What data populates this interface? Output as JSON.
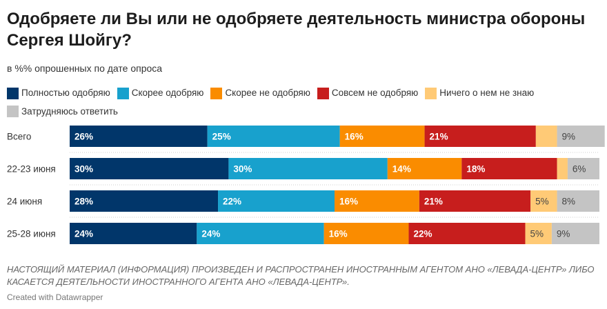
{
  "title": "Одобряете ли Вы или не одобряете деятельность министра обороны Сергея Шойгу?",
  "subtitle": "в %% опрошенных по дате опроса",
  "note": "НАСТОЯЩИЙ МАТЕРИАЛ (ИНФОРМАЦИЯ) ПРОИЗВЕДЕН И РАСПРОСТРАНЕН ИНОСТРАННЫМ АГЕНТОМ АНО «ЛЕВАДА-ЦЕНТР» ЛИБО КАСАЕТСЯ ДЕЯТЕЛЬНОСТИ ИНОСТРАННОГО АГЕНТА АНО «ЛЕВАДА-ЦЕНТР».",
  "credit": "Created with Datawrapper",
  "chart_data": {
    "type": "bar",
    "orientation": "horizontal",
    "stacked": true,
    "categories": [
      "Всего",
      "22-23 июня",
      "24 июня",
      "25-28 июня"
    ],
    "series": [
      {
        "name": "Полностью одобряю",
        "color": "#01366a",
        "values": [
          26,
          30,
          28,
          24
        ]
      },
      {
        "name": "Скорее одобряю",
        "color": "#18a1cd",
        "values": [
          25,
          30,
          22,
          24
        ]
      },
      {
        "name": "Скорее не одобряю",
        "color": "#fa8c00",
        "values": [
          16,
          14,
          16,
          16
        ]
      },
      {
        "name": "Совсем не одобряю",
        "color": "#c71e1d",
        "values": [
          21,
          18,
          21,
          22
        ]
      },
      {
        "name": "Ничего о нем не знаю",
        "color": "#ffca76",
        "values": [
          4,
          2,
          5,
          5
        ]
      },
      {
        "name": "Затрудняюсь ответить",
        "color": "#c4c4c4",
        "values": [
          9,
          6,
          8,
          9
        ]
      }
    ],
    "xlim": [
      0,
      100
    ],
    "value_suffix": "%",
    "legend_position": "top",
    "grid": false
  }
}
